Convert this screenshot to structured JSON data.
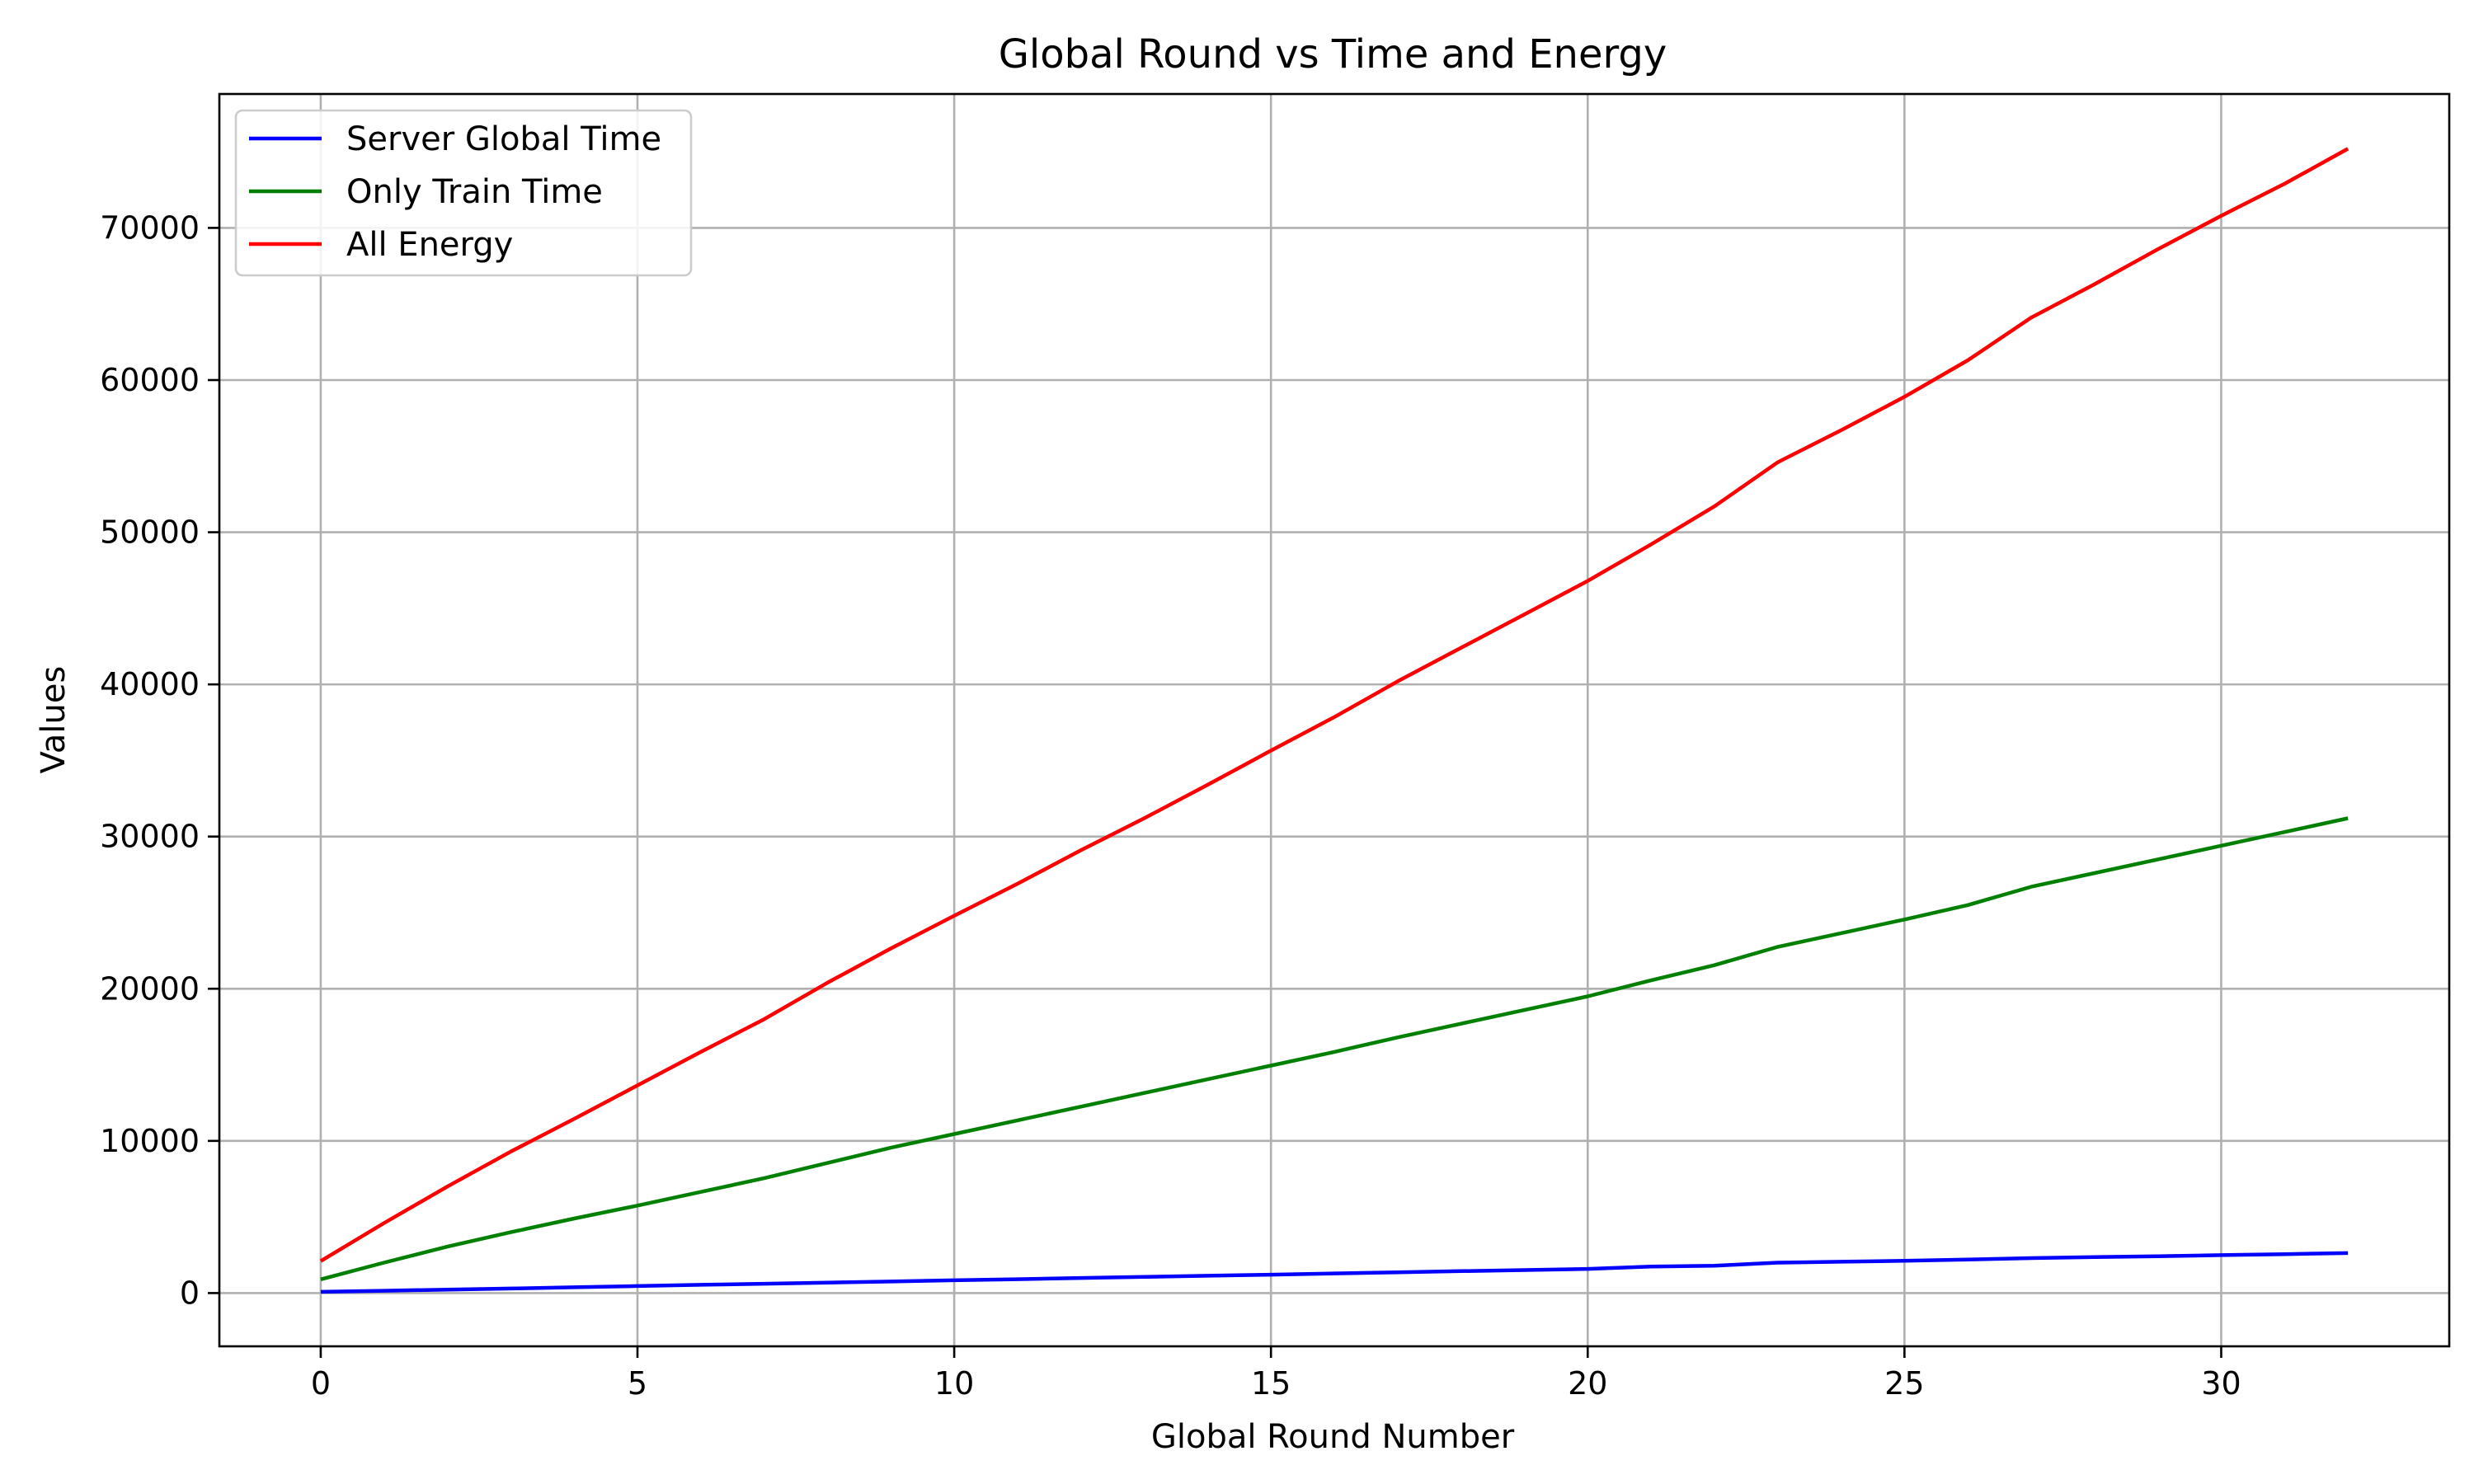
{
  "chart_data": {
    "type": "line",
    "title": "Global Round vs Time and Energy",
    "xlabel": "Global Round Number",
    "ylabel": "Values",
    "xlim": [
      -1.6,
      33.6
    ],
    "ylim": [
      -3500,
      78800
    ],
    "xticks": [
      0,
      5,
      10,
      15,
      20,
      25,
      30
    ],
    "yticks": [
      0,
      10000,
      20000,
      30000,
      40000,
      50000,
      60000,
      70000
    ],
    "grid": true,
    "legend_position": "upper-left",
    "x": [
      0,
      1,
      2,
      3,
      4,
      5,
      6,
      7,
      8,
      9,
      10,
      11,
      12,
      13,
      14,
      15,
      16,
      17,
      18,
      19,
      20,
      21,
      22,
      23,
      24,
      25,
      26,
      27,
      28,
      29,
      30,
      31,
      32
    ],
    "series": [
      {
        "name": "Server Global Time",
        "color": "#0000ff",
        "values": [
          80,
          150,
          230,
          300,
          380,
          460,
          540,
          610,
          690,
          760,
          840,
          910,
          990,
          1060,
          1140,
          1210,
          1290,
          1360,
          1440,
          1510,
          1590,
          1740,
          1800,
          2000,
          2060,
          2120,
          2200,
          2300,
          2360,
          2420,
          2490,
          2560,
          2630
        ]
      },
      {
        "name": "Only Train Time",
        "color": "#008000",
        "values": [
          900,
          2000,
          3050,
          4000,
          4900,
          5750,
          6650,
          7550,
          8550,
          9550,
          10450,
          11350,
          12250,
          13150,
          14050,
          14950,
          15850,
          16800,
          17700,
          18600,
          19500,
          20550,
          21550,
          22750,
          23650,
          24550,
          25500,
          26700,
          27600,
          28500,
          29400,
          30300,
          31200
        ]
      },
      {
        "name": "All Energy",
        "color": "#ff0000",
        "values": [
          2100,
          4600,
          7000,
          9300,
          11450,
          13650,
          15850,
          18000,
          20400,
          22650,
          24800,
          26900,
          29100,
          31200,
          33400,
          35650,
          37850,
          40200,
          42400,
          44600,
          46800,
          49200,
          51700,
          54600,
          56700,
          58900,
          61300,
          64100,
          66300,
          68600,
          70800,
          72900,
          75200
        ]
      }
    ]
  }
}
